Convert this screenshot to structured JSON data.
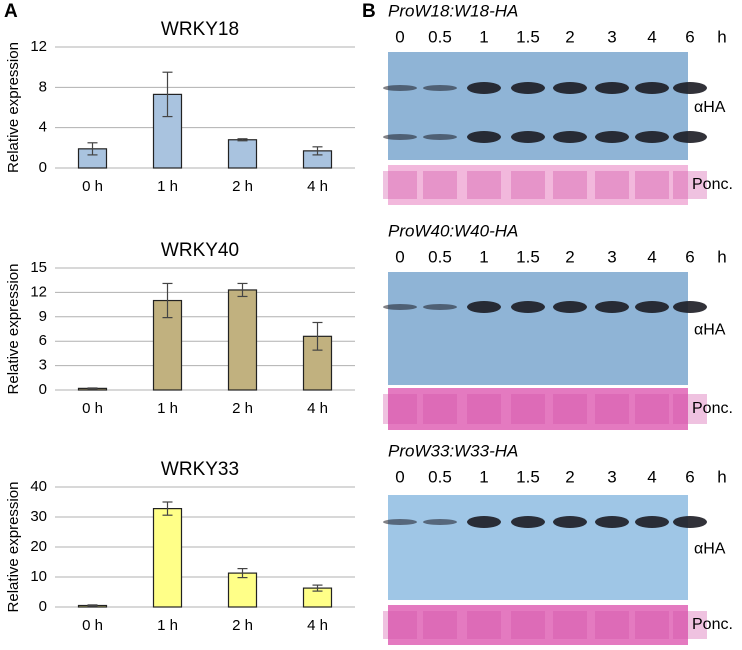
{
  "panel_labels": [
    "A",
    "B"
  ],
  "chart_data": [
    {
      "type": "bar",
      "title": "WRKY18",
      "y_label": "Relative expression",
      "categories": [
        "0 h",
        "1 h",
        "2 h",
        "4 h"
      ],
      "values": [
        1.9,
        7.3,
        2.8,
        1.7
      ],
      "errors": [
        0.6,
        2.2,
        0.1,
        0.4
      ],
      "color": "#a9c3df",
      "ylim": [
        0,
        12
      ],
      "yticks": [
        0,
        4,
        8,
        12
      ],
      "grid": true
    },
    {
      "type": "bar",
      "title": "WRKY40",
      "y_label": "Relative expression",
      "categories": [
        "0 h",
        "1 h",
        "2 h",
        "4 h"
      ],
      "values": [
        0.2,
        11.0,
        12.3,
        6.6
      ],
      "errors": [
        0.05,
        2.1,
        0.8,
        1.7
      ],
      "color": "#c1b17f",
      "ylim": [
        0,
        15
      ],
      "yticks": [
        0,
        3,
        6,
        9,
        12,
        15
      ],
      "grid": true
    },
    {
      "type": "bar",
      "title": "WRKY33",
      "y_label": "Relative expression",
      "categories": [
        "0 h",
        "1 h",
        "2 h",
        "4 h"
      ],
      "values": [
        0.5,
        32.8,
        11.3,
        6.3
      ],
      "errors": [
        0.2,
        2.2,
        1.5,
        1.0
      ],
      "color": "#ffff88",
      "ylim": [
        0,
        40
      ],
      "yticks": [
        0,
        10,
        20,
        30,
        40
      ],
      "grid": true
    }
  ],
  "blots": [
    {
      "label": "ProW18:W18-HA",
      "lanes": [
        "0",
        "0.5",
        "1",
        "1.5",
        "2",
        "3",
        "4",
        "6"
      ],
      "unit": "h",
      "antibody": "αHA",
      "stain": "Ponc."
    },
    {
      "label": "ProW40:W40-HA",
      "lanes": [
        "0",
        "0.5",
        "1",
        "1.5",
        "2",
        "3",
        "4",
        "6"
      ],
      "unit": "h",
      "antibody": "αHA",
      "stain": "Ponc."
    },
    {
      "label": "ProW33:W33-HA",
      "lanes": [
        "0",
        "0.5",
        "1",
        "1.5",
        "2",
        "3",
        "4",
        "6"
      ],
      "unit": "h",
      "antibody": "αHA",
      "stain": "Ponc."
    }
  ]
}
